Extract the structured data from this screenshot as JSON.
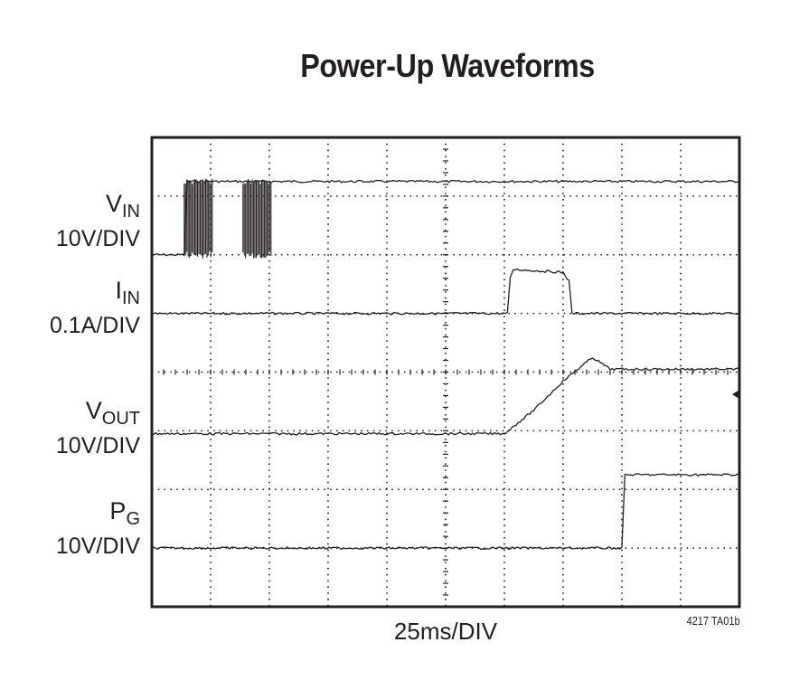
{
  "page": {
    "title": "Power-Up Waveforms",
    "x_scale_label": "25ms/DIV",
    "figure_number": "4217 TA01b"
  },
  "chart_data": {
    "type": "line",
    "title": "Power-Up Waveforms",
    "xlabel": "25ms/DIV",
    "x_divisions": 10,
    "y_divisions": 8,
    "grid": true,
    "x_unit": "DIV",
    "series": [
      {
        "name": "VIN",
        "label": "V",
        "sub": "IN",
        "scale": "10V/DIV",
        "x": [
          0,
          0.55,
          0.6,
          1.7,
          10
        ],
        "y": [
          6.0,
          6.0,
          7.25,
          7.25,
          7.25
        ],
        "burst": [
          [
            0.55,
            2.0
          ],
          [
            1.55,
            2.0
          ]
        ]
      },
      {
        "name": "IIN",
        "label": "I",
        "sub": "IN",
        "scale": "0.1A/DIV",
        "x": [
          0,
          6.05,
          6.1,
          6.15,
          7.0,
          7.1,
          7.15,
          10
        ],
        "y": [
          5.0,
          5.0,
          5.6,
          5.75,
          5.7,
          5.55,
          5.0,
          5.0
        ]
      },
      {
        "name": "VOUT",
        "label": "V",
        "sub": "OUT",
        "scale": "10V/DIV",
        "x": [
          0,
          6.0,
          6.5,
          7.0,
          7.5,
          7.8,
          10
        ],
        "y": [
          2.95,
          2.95,
          3.35,
          3.85,
          4.25,
          4.05,
          4.05
        ],
        "ground_marker": 3.62
      },
      {
        "name": "PG",
        "label": "P",
        "sub": "G",
        "scale": "10V/DIV",
        "x": [
          0,
          8.0,
          8.05,
          10
        ],
        "y": [
          1.0,
          1.0,
          2.25,
          2.25
        ]
      }
    ]
  }
}
